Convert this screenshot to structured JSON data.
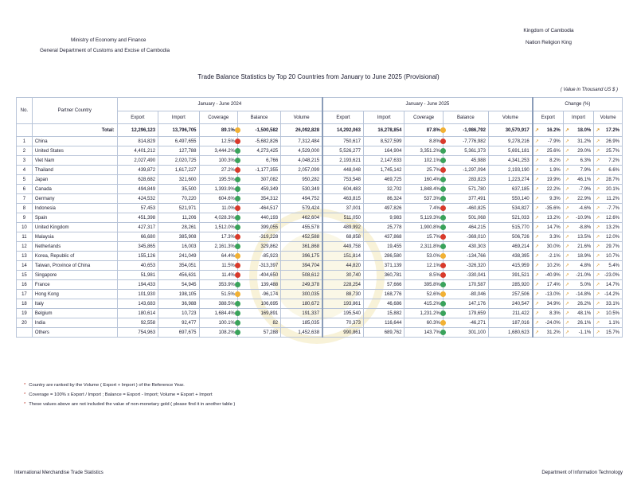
{
  "header": {
    "left_line1": "Ministry of Economy and Finance",
    "left_line2": "General Department of Customs and Excise of Cambodia",
    "right_line1": "Kingdom of Cambodia",
    "right_line2": "Nation Religion King"
  },
  "title": "Trade Balance Statistics by Top 20 Countries from January to June 2025  (Provisional)",
  "unit": "( Value in Thousand US $ )",
  "table": {
    "col_no": "No.",
    "col_country": "Partner Country",
    "period_a": "January - June 2024",
    "period_b": "January - June 2025",
    "change": "Change (%)",
    "sub_a": [
      "Export",
      "Import",
      "Coverage",
      "Balance",
      "Volume"
    ],
    "sub_b": [
      "Export",
      "Import",
      "Coverage",
      "Balance",
      "Volume"
    ],
    "sub_c": [
      "Export",
      "Import",
      "Volume"
    ],
    "total": {
      "label": "Total:",
      "a": [
        "12,296,123",
        "13,796,705",
        "89.1%",
        "-1,500,582",
        "26,092,828"
      ],
      "b": [
        "14,292,063",
        "16,278,854",
        "87.8%",
        "-1,986,792",
        "30,570,917"
      ],
      "c": [
        "16.2%",
        "18.0%",
        "17.2%"
      ]
    },
    "rows": [
      {
        "no": "1",
        "country": "China",
        "a": [
          "814,829",
          "6,497,655",
          "12.5%",
          "-5,682,826",
          "7,312,484"
        ],
        "b": [
          "750,617",
          "8,527,599",
          "8.8%",
          "-7,776,982",
          "9,278,216"
        ],
        "c": [
          "-7.9%",
          "31.2%",
          "26.9%"
        ]
      },
      {
        "no": "2",
        "country": "United States",
        "a": [
          "4,401,212",
          "127,788",
          "3,444.2%",
          "4,273,425",
          "4,529,000"
        ],
        "b": [
          "5,526,277",
          "164,904",
          "3,351.2%",
          "5,361,373",
          "5,691,181"
        ],
        "c": [
          "25.6%",
          "29.0%",
          "25.7%"
        ]
      },
      {
        "no": "3",
        "country": "Viet Nam",
        "a": [
          "2,027,490",
          "2,020,725",
          "100.3%",
          "6,766",
          "4,048,215"
        ],
        "b": [
          "2,193,621",
          "2,147,633",
          "102.1%",
          "45,988",
          "4,341,253"
        ],
        "c": [
          "8.2%",
          "6.3%",
          "7.2%"
        ]
      },
      {
        "no": "4",
        "country": "Thailand",
        "a": [
          "439,872",
          "1,617,227",
          "27.2%",
          "-1,177,355",
          "2,057,099"
        ],
        "b": [
          "448,048",
          "1,745,142",
          "25.7%",
          "-1,297,094",
          "2,193,190"
        ],
        "c": [
          "1.9%",
          "7.9%",
          "6.6%"
        ]
      },
      {
        "no": "5",
        "country": "Japan",
        "a": [
          "628,682",
          "321,600",
          "195.5%",
          "307,082",
          "950,282"
        ],
        "b": [
          "753,548",
          "469,725",
          "160.4%",
          "283,823",
          "1,223,274"
        ],
        "c": [
          "19.9%",
          "46.1%",
          "28.7%"
        ]
      },
      {
        "no": "6",
        "country": "Canada",
        "a": [
          "494,849",
          "35,500",
          "1,393.9%",
          "459,349",
          "530,349"
        ],
        "b": [
          "604,483",
          "32,702",
          "1,848.4%",
          "571,780",
          "637,185"
        ],
        "c": [
          "22.2%",
          "-7.9%",
          "20.1%"
        ]
      },
      {
        "no": "7",
        "country": "Germany",
        "a": [
          "424,532",
          "70,220",
          "604.6%",
          "354,312",
          "494,752"
        ],
        "b": [
          "463,815",
          "86,324",
          "537.3%",
          "377,491",
          "550,140"
        ],
        "c": [
          "9.3%",
          "22.9%",
          "11.2%"
        ]
      },
      {
        "no": "8",
        "country": "Indonesia",
        "a": [
          "57,453",
          "521,971",
          "11.0%",
          "-464,517",
          "579,424"
        ],
        "b": [
          "37,001",
          "497,826",
          "7.4%",
          "-460,825",
          "534,827"
        ],
        "c": [
          "-35.6%",
          "-4.6%",
          "-7.7%"
        ]
      },
      {
        "no": "9",
        "country": "Spain",
        "a": [
          "451,398",
          "11,206",
          "4,028.3%",
          "440,193",
          "462,604"
        ],
        "b": [
          "511,050",
          "9,983",
          "5,119.3%",
          "501,068",
          "521,033"
        ],
        "c": [
          "13.2%",
          "-10.9%",
          "12.6%"
        ]
      },
      {
        "no": "10",
        "country": "United Kingdom",
        "a": [
          "427,317",
          "28,261",
          "1,512.0%",
          "399,055",
          "455,578"
        ],
        "b": [
          "489,992",
          "25,778",
          "1,900.8%",
          "464,215",
          "515,770"
        ],
        "c": [
          "14.7%",
          "-8.8%",
          "13.2%"
        ]
      },
      {
        "no": "11",
        "country": "Malaysia",
        "a": [
          "66,680",
          "385,908",
          "17.3%",
          "-319,228",
          "452,588"
        ],
        "b": [
          "68,858",
          "437,868",
          "15.7%",
          "-369,010",
          "506,726"
        ],
        "c": [
          "3.3%",
          "13.5%",
          "12.0%"
        ]
      },
      {
        "no": "12",
        "country": "Netherlands",
        "a": [
          "345,865",
          "16,003",
          "2,161.3%",
          "329,862",
          "361,868"
        ],
        "b": [
          "449,758",
          "19,455",
          "2,311.8%",
          "430,303",
          "469,214"
        ],
        "c": [
          "30.0%",
          "21.6%",
          "29.7%"
        ]
      },
      {
        "no": "13",
        "country": "Korea, Republic of",
        "a": [
          "155,126",
          "241,049",
          "64.4%",
          "-85,923",
          "396,175"
        ],
        "b": [
          "151,814",
          "286,580",
          "53.0%",
          "-134,766",
          "438,395"
        ],
        "c": [
          "-2.1%",
          "18.9%",
          "10.7%"
        ]
      },
      {
        "no": "14",
        "country": "Taiwan, Province of China",
        "a": [
          "40,653",
          "354,051",
          "11.5%",
          "-313,397",
          "394,704"
        ],
        "b": [
          "44,820",
          "371,139",
          "12.1%",
          "-326,320",
          "415,959"
        ],
        "c": [
          "10.2%",
          "4.8%",
          "5.4%"
        ]
      },
      {
        "no": "15",
        "country": "Singapore",
        "a": [
          "51,981",
          "456,631",
          "11.4%",
          "-404,650",
          "508,612"
        ],
        "b": [
          "30,740",
          "360,781",
          "8.5%",
          "-330,041",
          "391,521"
        ],
        "c": [
          "-40.9%",
          "-21.0%",
          "-23.0%"
        ]
      },
      {
        "no": "16",
        "country": "France",
        "a": [
          "194,433",
          "54,945",
          "353.9%",
          "139,488",
          "249,378"
        ],
        "b": [
          "228,254",
          "57,666",
          "395.8%",
          "170,587",
          "285,920"
        ],
        "c": [
          "17.4%",
          "5.0%",
          "14.7%"
        ]
      },
      {
        "no": "17",
        "country": "Hong Kong",
        "a": [
          "101,930",
          "198,105",
          "51.5%",
          "-96,174",
          "300,035"
        ],
        "b": [
          "88,730",
          "168,776",
          "52.6%",
          "-80,046",
          "257,506"
        ],
        "c": [
          "-13.0%",
          "-14.8%",
          "-14.2%"
        ]
      },
      {
        "no": "18",
        "country": "Italy",
        "a": [
          "143,683",
          "36,988",
          "388.5%",
          "106,695",
          "180,672"
        ],
        "b": [
          "193,861",
          "46,686",
          "415.2%",
          "147,176",
          "240,547"
        ],
        "c": [
          "34.9%",
          "26.2%",
          "33.1%"
        ]
      },
      {
        "no": "19",
        "country": "Belgium",
        "a": [
          "180,614",
          "10,723",
          "1,684.4%",
          "169,891",
          "191,337"
        ],
        "b": [
          "195,540",
          "15,882",
          "1,231.2%",
          "179,659",
          "211,422"
        ],
        "c": [
          "8.3%",
          "48.1%",
          "10.5%"
        ]
      },
      {
        "no": "20",
        "country": "India",
        "a": [
          "92,558",
          "92,477",
          "100.1%",
          "82",
          "185,035"
        ],
        "b": [
          "70,373",
          "116,644",
          "60.3%",
          "-46,271",
          "187,016"
        ],
        "c": [
          "-24.0%",
          "26.1%",
          "1.1%"
        ]
      },
      {
        "no": "",
        "country": "Others",
        "a": [
          "754,963",
          "697,675",
          "108.2%",
          "57,288",
          "1,452,638"
        ],
        "b": [
          "990,861",
          "689,762",
          "143.7%",
          "301,100",
          "1,680,623"
        ],
        "c": [
          "31.2%",
          "-1.1%",
          "15.7%"
        ]
      }
    ]
  },
  "notes": [
    {
      "star": "*",
      "text": "Country are ranked by the Volume ( Export + Import ) of the Reference Year."
    },
    {
      "star": "*",
      "text": "Coverage = 100% x Export / Import ; Balance = Export - Import; Volume = Export + Import"
    },
    {
      "star": "*",
      "text": "These values above are not included the value of non-monetary gold ( please find it in another table )"
    }
  ],
  "footer": {
    "left": "International Merchandise Trade Statistics",
    "right": "Department of Information Technology"
  },
  "colors": {
    "coverage_low": "#d93a2b",
    "coverage_mid": "#f2b134",
    "coverage_high": "#3aa35b",
    "change_arrow": "#d99a2b",
    "grid": "#b8c4d8"
  }
}
